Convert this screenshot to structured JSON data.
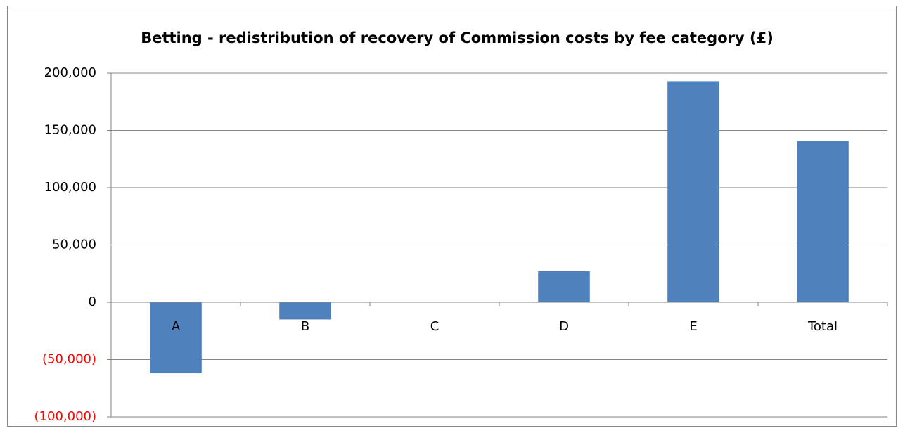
{
  "chart_data": {
    "type": "bar",
    "title": "Betting - redistribution of recovery of Commission costs by fee category (£)",
    "categories": [
      "A",
      "B",
      "C",
      "D",
      "E",
      "Total"
    ],
    "values": [
      -62000,
      -15000,
      0,
      27000,
      193000,
      141000
    ],
    "color": "#4f81bd",
    "ylim": [
      -100000,
      200000
    ],
    "yticks": [
      {
        "value": -100000,
        "label": "(100,000)"
      },
      {
        "value": -50000,
        "label": "(50,000)"
      },
      0,
      {
        "value": 50000,
        "label": "50,000"
      },
      {
        "value": 100000,
        "label": "100,000"
      },
      {
        "value": 150000,
        "label": "150,000"
      },
      {
        "value": 200000,
        "label": "200,000"
      }
    ],
    "negative_tick_color": "#ff0000",
    "grid": true
  }
}
